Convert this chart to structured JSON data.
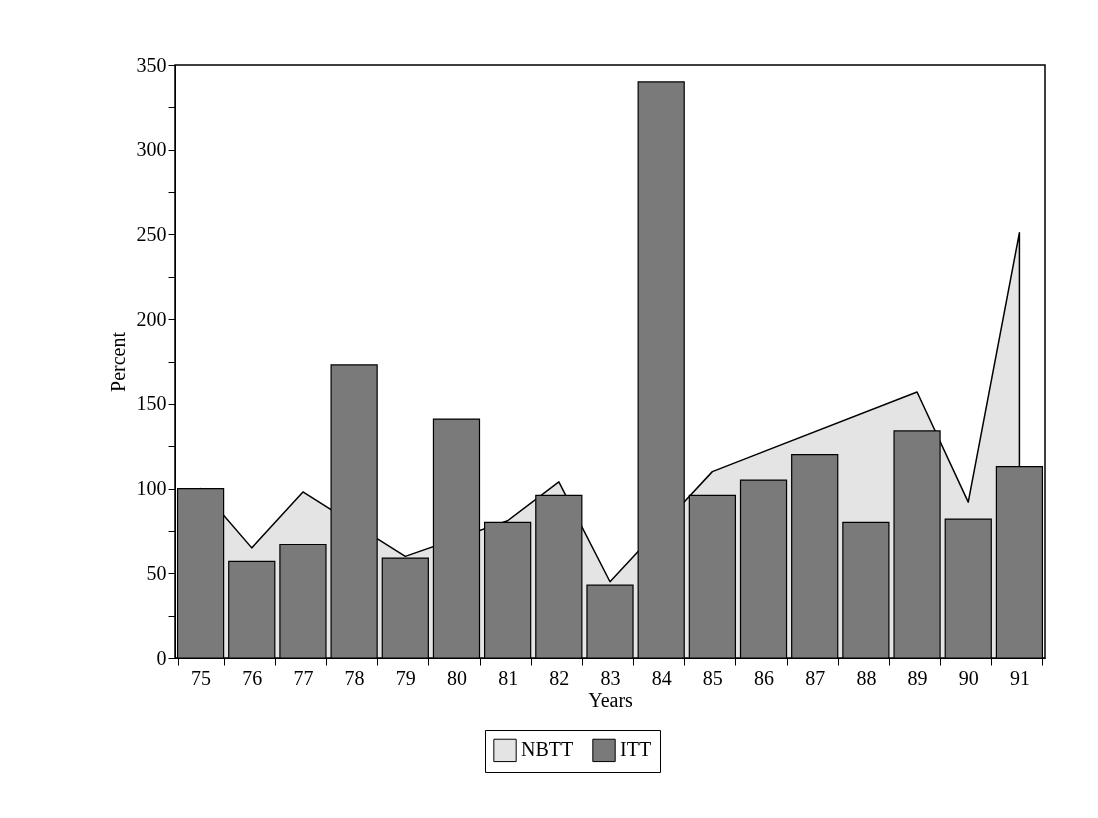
{
  "chart_data": {
    "type": "bar",
    "xlabel": "Years",
    "ylabel": "Percent",
    "categories": [
      "75",
      "76",
      "77",
      "78",
      "79",
      "80",
      "81",
      "82",
      "83",
      "84",
      "85",
      "86",
      "87",
      "88",
      "89",
      "90",
      "91"
    ],
    "series": [
      {
        "name": "NBTT",
        "type": "area",
        "color": "#e4e4e4",
        "values": [
          100,
          65,
          98,
          null,
          60,
          null,
          81,
          104,
          45,
          null,
          110,
          null,
          null,
          null,
          157,
          92,
          251
        ]
      },
      {
        "name": "ITT",
        "color": "#7a7a7a",
        "values": [
          100,
          57,
          67,
          173,
          59,
          141,
          80,
          96,
          43,
          340,
          96,
          105,
          120,
          80,
          134,
          82,
          113
        ]
      }
    ],
    "ylim": [
      0,
      350
    ],
    "yticks": [
      0,
      {
        "value": 25,
        "label": null
      },
      50,
      {
        "value": 75,
        "label": null
      },
      100,
      {
        "value": 125,
        "label": null
      },
      150,
      {
        "value": 175,
        "label": null
      },
      200,
      {
        "value": 225,
        "label": null
      },
      250,
      {
        "value": 275,
        "label": null
      },
      300,
      {
        "value": 325,
        "label": null
      },
      350
    ],
    "grid": false,
    "legend": "bottom"
  }
}
